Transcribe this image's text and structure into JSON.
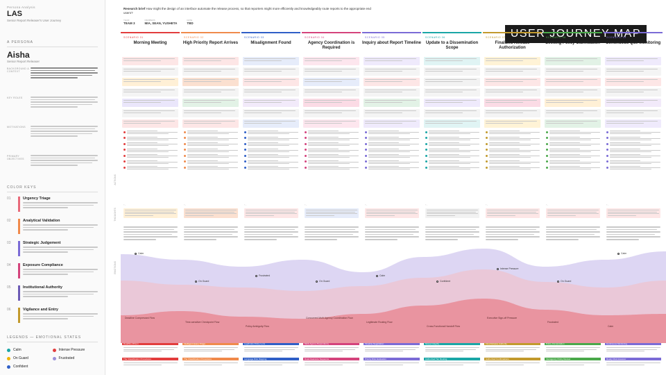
{
  "project": {
    "label": "Persona Analysis",
    "code": "LAS",
    "subtitle": "Senior Report Releaser's User Journey"
  },
  "header": {
    "brief_label": "Research brief",
    "brief_text": "How might the design of an interface automate the release process, so that reporters might more efficiently and knowledgeably route reports to the appropriate end users?",
    "meta": [
      {
        "k": "TEAM",
        "v": "TEAM 3"
      },
      {
        "k": "MEMBERS",
        "v": "MIA, SEAN, YUSHETA"
      },
      {
        "k": "DATE",
        "v": "TBD"
      }
    ]
  },
  "banner": "USER JOURNEY MAP",
  "persona": {
    "section_label": "A PERSONA",
    "name": "Aisha",
    "role": "Senior Report Releaser",
    "blocks": [
      "Background & Context",
      "Key Roles",
      "Motivations",
      "Primary Objectives"
    ]
  },
  "color_keys": {
    "section_label": "COLOR KEYS",
    "items": [
      {
        "num": "01",
        "title": "Urgency Triage",
        "color": "#e86a7a"
      },
      {
        "num": "02",
        "title": "Analytical Validation",
        "color": "#f08a4b"
      },
      {
        "num": "03",
        "title": "Strategic Judgement",
        "color": "#7b6bd6"
      },
      {
        "num": "04",
        "title": "Exposure Compliance",
        "color": "#d4437c"
      },
      {
        "num": "05",
        "title": "Institutional Authority",
        "color": "#6c5bb5"
      },
      {
        "num": "06",
        "title": "Vigilance and Entry",
        "color": "#c29a2d"
      }
    ]
  },
  "legend": {
    "section_label": "LEGENDS — EMOTIONAL STATES",
    "items": [
      {
        "label": "Calm",
        "color": "#1aa6a6"
      },
      {
        "label": "Intense Pressure",
        "color": "#e23d3d"
      },
      {
        "label": "On Guard",
        "color": "#f0b400"
      },
      {
        "label": "Frustrated",
        "color": "#9a8fd8"
      },
      {
        "label": "Confident",
        "color": "#2f5fc7"
      }
    ]
  },
  "row_labels": [
    "ACTIONS",
    "THOUGHTS",
    "EMOTIONS"
  ],
  "scenarios": [
    {
      "num": "SCENARIO 01",
      "title": "Morning Meeting",
      "color": "#e23d3d",
      "band1": "#fde6e6",
      "band2": "#fff0d6",
      "band3": "#eae6fb"
    },
    {
      "num": "SCENARIO 02",
      "title": "High Priority Report Arrives",
      "color": "#f08a4b",
      "band1": "#fde6e6",
      "band2": "#fbe0d0",
      "band3": "#e2f2e6"
    },
    {
      "num": "SCENARIO 03",
      "title": "Misalignment Found",
      "color": "#2f5fc7",
      "band1": "#e6ecfa",
      "band2": "#fde6e6",
      "band3": "#f2eafa"
    },
    {
      "num": "SCENARIO 04",
      "title": "Agency Coordination is Required",
      "color": "#d4437c",
      "band1": "#fde6ee",
      "band2": "#e6ecfa",
      "band3": "#fbdbe5"
    },
    {
      "num": "SCENARIO 05",
      "title": "Inquiry about Report Timeline",
      "color": "#7b6bd6",
      "band1": "#efeafc",
      "band2": "#fde6e6",
      "band3": "#e2f2e6"
    },
    {
      "num": "SCENARIO 06",
      "title": "Update to a Dissemination Scope",
      "color": "#1aa6a6",
      "band1": "#e0f4f4",
      "band2": "#f2f2f2",
      "band3": "#efeafc"
    },
    {
      "num": "SCENARIO 07",
      "title": "Finalized Release Authorization",
      "color": "#c29a2d",
      "band1": "#fff3d6",
      "band2": "#fde6e6",
      "band3": "#fbdbe5"
    },
    {
      "num": "SCENARIO 08",
      "title": "Seeking Policy Clarification",
      "color": "#4aa84a",
      "band1": "#e2f2e6",
      "band2": "#fde6e6",
      "band3": "#fff0d6"
    },
    {
      "num": "SCENARIO 09",
      "title": "Continuous Que Monitoring",
      "color": "#7b6bd6",
      "band1": "#efeafc",
      "band2": "#fde6e6",
      "band3": "#f2eafa"
    }
  ],
  "emotions": [
    {
      "label": "Calm",
      "col": 0,
      "level": "low"
    },
    {
      "label": "On Guard",
      "col": 1,
      "level": "mid"
    },
    {
      "label": "Frustrated",
      "col": 2,
      "level": "mid"
    },
    {
      "label": "On Guard",
      "col": 3,
      "level": "mid"
    },
    {
      "label": "Calm",
      "col": 4,
      "level": "mid"
    },
    {
      "label": "Confident",
      "col": 5,
      "level": "mid"
    },
    {
      "label": "Intense Pressure",
      "col": 6,
      "level": "high"
    },
    {
      "label": "On Guard",
      "col": 7,
      "level": "mid"
    },
    {
      "label": "Calm",
      "col": 8,
      "level": "low"
    }
  ],
  "emotion_marks": [
    "Deadline Compressed Flow",
    "Time-sensitive Checkpoint Flow",
    "Policy Ambiguity Flow",
    "Concurrent Multi-Agency Coordination Flow",
    "Legitimate Routing Flow",
    "Cross-Functional Handoff Flow",
    "Executive Sign-off Pressure",
    "Frustrated",
    "Calm"
  ],
  "footer_tags": [
    "Deadline-Driven",
    "Intelligent Query Triage",
    "Legitimate Policy Lens",
    "Multi-Agency Dependency",
    "Timeline Negotiation",
    "Scope Integrity",
    "Final Release Authority",
    "Policy Interpretation",
    "Continuous Monitoring"
  ],
  "footer_tags2": [
    "The Classification Procedures",
    "The Classification Procedures",
    "Language Risk Mapping",
    "Dual-Clearance Sequence",
    "Priority Risk Evaluation",
    "Authorized Tier Routing",
    "Authorized Confirmations",
    "Interagency Policy Review",
    "Ready Risk Assessor"
  ]
}
